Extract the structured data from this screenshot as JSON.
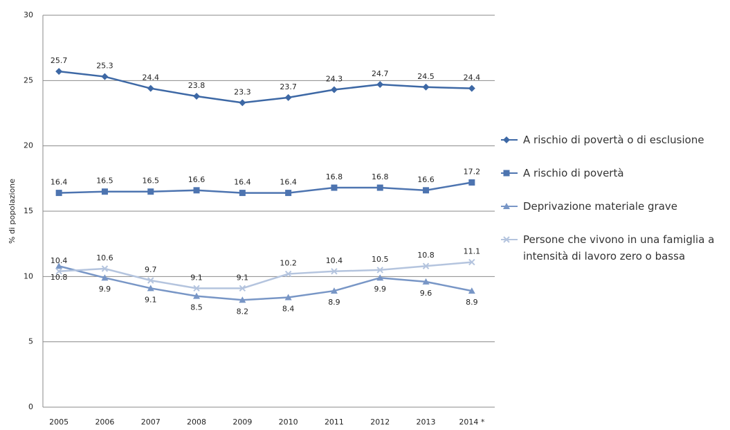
{
  "chart_data": {
    "type": "line",
    "y_label": "% di popolazione",
    "categories": [
      "2005",
      "2006",
      "2007",
      "2008",
      "2009",
      "2010",
      "2011",
      "2012",
      "2013",
      "2014 *"
    ],
    "series": [
      {
        "name": "A rischio di povertà o di esclusione",
        "color": "#3d68a5",
        "marker": "diamond",
        "label_position": "above",
        "values": [
          25.7,
          25.3,
          24.4,
          23.8,
          23.3,
          23.7,
          24.3,
          24.7,
          24.5,
          24.4
        ]
      },
      {
        "name": "A rischio di povertà",
        "color": "#4d74b0",
        "marker": "square",
        "label_position": "above",
        "values": [
          16.4,
          16.5,
          16.5,
          16.6,
          16.4,
          16.4,
          16.8,
          16.8,
          16.6,
          17.2
        ]
      },
      {
        "name": "Deprivazione materiale grave",
        "color": "#7896c6",
        "marker": "triangle",
        "label_position": "below",
        "values": [
          10.8,
          9.9,
          9.1,
          8.5,
          8.2,
          8.4,
          8.9,
          9.9,
          9.6,
          8.9
        ]
      },
      {
        "name": "Persone che vivono in una famiglia a intensità di lavoro zero o bassa",
        "color": "#b4c4de",
        "marker": "x",
        "label_position": "above",
        "values": [
          10.4,
          10.6,
          9.7,
          9.1,
          9.1,
          10.2,
          10.4,
          10.5,
          10.8,
          11.1
        ]
      }
    ],
    "ylim": [
      0,
      30
    ],
    "yticks": [
      0,
      5,
      10,
      15,
      20,
      25,
      30
    ],
    "grid": true
  }
}
